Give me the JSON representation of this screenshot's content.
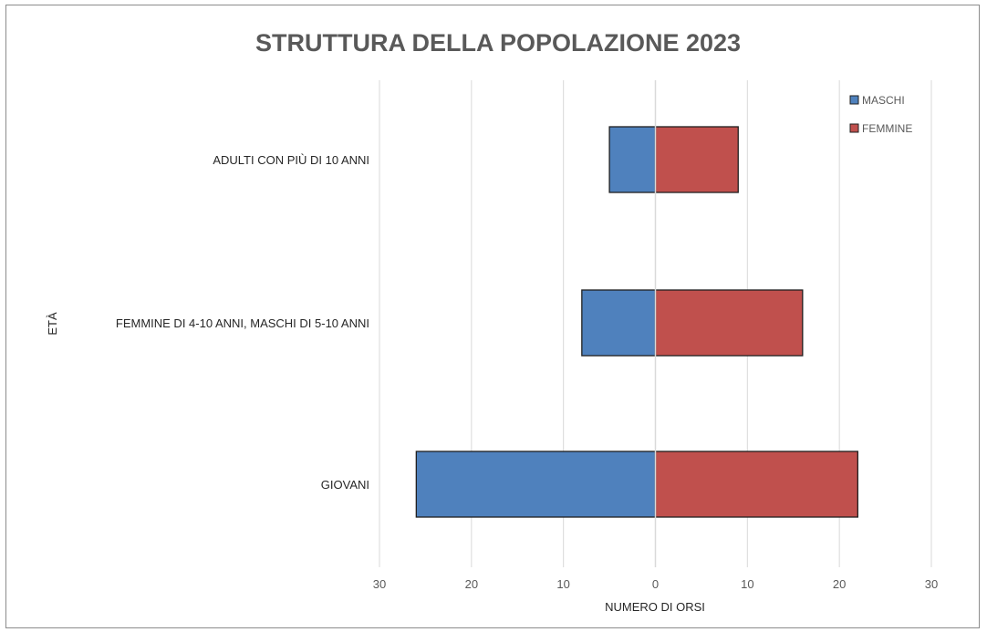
{
  "chart_data": {
    "type": "bar",
    "orientation": "horizontal",
    "layout": "population-pyramid",
    "title": "STRUTTURA DELLA POPOLAZIONE 2023",
    "xlabel": "NUMERO DI ORSI",
    "ylabel": "ETÀ",
    "categories": [
      "ADULTI CON PIÙ DI 10 ANNI",
      "FEMMINE DI 4-10 ANNI, MASCHI DI 5-10 ANNI",
      "GIOVANI"
    ],
    "series": [
      {
        "name": "MASCHI",
        "values": [
          5,
          8,
          26
        ],
        "color": "#4f81bd",
        "side": "left"
      },
      {
        "name": "FEMMINE",
        "values": [
          9,
          16,
          22
        ],
        "color": "#c0504d",
        "side": "right"
      }
    ],
    "xlim": [
      -30,
      30
    ],
    "xticks": [
      -30,
      -20,
      -10,
      0,
      10,
      20,
      30
    ],
    "xtick_labels": [
      "30",
      "20",
      "10",
      "0",
      "10",
      "20",
      "30"
    ],
    "grid": "vertical",
    "legend_position": "top-right"
  }
}
